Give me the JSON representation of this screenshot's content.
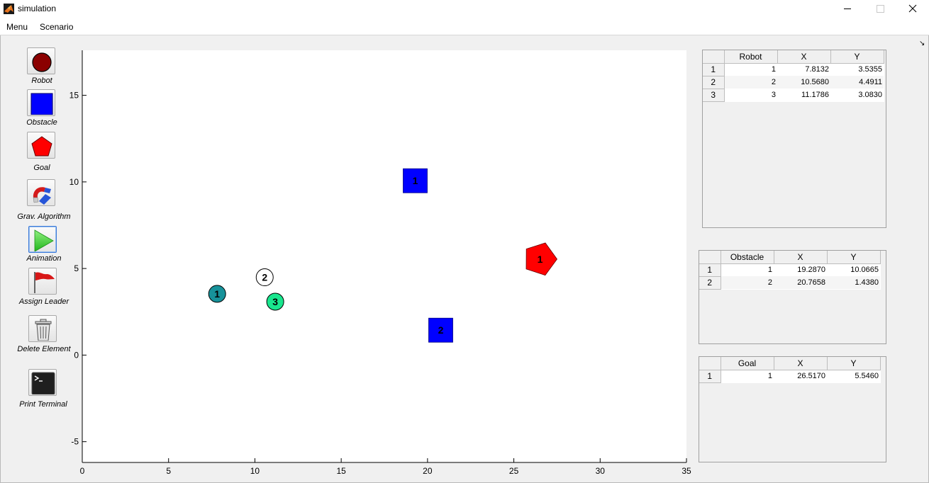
{
  "window": {
    "title": "simulation",
    "controls": {
      "minimize": "—",
      "maximize": "☐",
      "close": "✕"
    }
  },
  "menu": {
    "items": [
      "Menu",
      "Scenario"
    ],
    "dock_glyph": "↘"
  },
  "toolbar": {
    "tools": [
      {
        "label": "Robot",
        "icon": "robot-icon"
      },
      {
        "label": "Obstacle",
        "icon": "obstacle-icon"
      },
      {
        "label": "Goal",
        "icon": "goal-icon"
      },
      {
        "label": "Grav. Algorithm",
        "icon": "magnet-icon"
      },
      {
        "label": "Animation",
        "icon": "play-icon"
      },
      {
        "label": "Assign Leader",
        "icon": "flag-icon"
      },
      {
        "label": "Delete Element",
        "icon": "trash-icon"
      },
      {
        "label": "Print Terminal",
        "icon": "terminal-icon"
      }
    ]
  },
  "chart_data": {
    "type": "scatter",
    "title": "",
    "xlabel": "",
    "ylabel": "",
    "xlim": [
      0,
      35
    ],
    "ylim": [
      -6.2,
      17.6
    ],
    "xticks": [
      0,
      5,
      10,
      15,
      20,
      25,
      30,
      35
    ],
    "yticks": [
      -5,
      0,
      5,
      10,
      15
    ],
    "grid": false,
    "robots": [
      {
        "id": "1",
        "x": 7.8132,
        "y": 3.5355,
        "color": "#17929a",
        "text_color": "#000000"
      },
      {
        "id": "2",
        "x": 10.568,
        "y": 4.4911,
        "color": "#ffffff",
        "text_color": "#000000"
      },
      {
        "id": "3",
        "x": 11.1786,
        "y": 3.083,
        "color": "#19e68e",
        "text_color": "#000000"
      }
    ],
    "obstacles": [
      {
        "id": "1",
        "x": 19.287,
        "y": 10.0665,
        "color": "#0000ff"
      },
      {
        "id": "2",
        "x": 20.7658,
        "y": 1.438,
        "color": "#0000ff"
      }
    ],
    "goals": [
      {
        "id": "1",
        "x": 26.517,
        "y": 5.546,
        "color": "#ff0000"
      }
    ]
  },
  "tables": {
    "robot": {
      "headers": [
        "Robot",
        "X",
        "Y"
      ],
      "rows": [
        {
          "row": "1",
          "cells": [
            "1",
            "7.8132",
            "3.5355"
          ]
        },
        {
          "row": "2",
          "cells": [
            "2",
            "10.5680",
            "4.4911"
          ]
        },
        {
          "row": "3",
          "cells": [
            "3",
            "11.1786",
            "3.0830"
          ]
        }
      ]
    },
    "obstacle": {
      "headers": [
        "Obstacle",
        "X",
        "Y"
      ],
      "rows": [
        {
          "row": "1",
          "cells": [
            "1",
            "19.2870",
            "10.0665"
          ]
        },
        {
          "row": "2",
          "cells": [
            "2",
            "20.7658",
            "1.4380"
          ]
        }
      ]
    },
    "goal": {
      "headers": [
        "Goal",
        "X",
        "Y"
      ],
      "rows": [
        {
          "row": "1",
          "cells": [
            "1",
            "26.5170",
            "5.5460"
          ]
        }
      ]
    }
  }
}
